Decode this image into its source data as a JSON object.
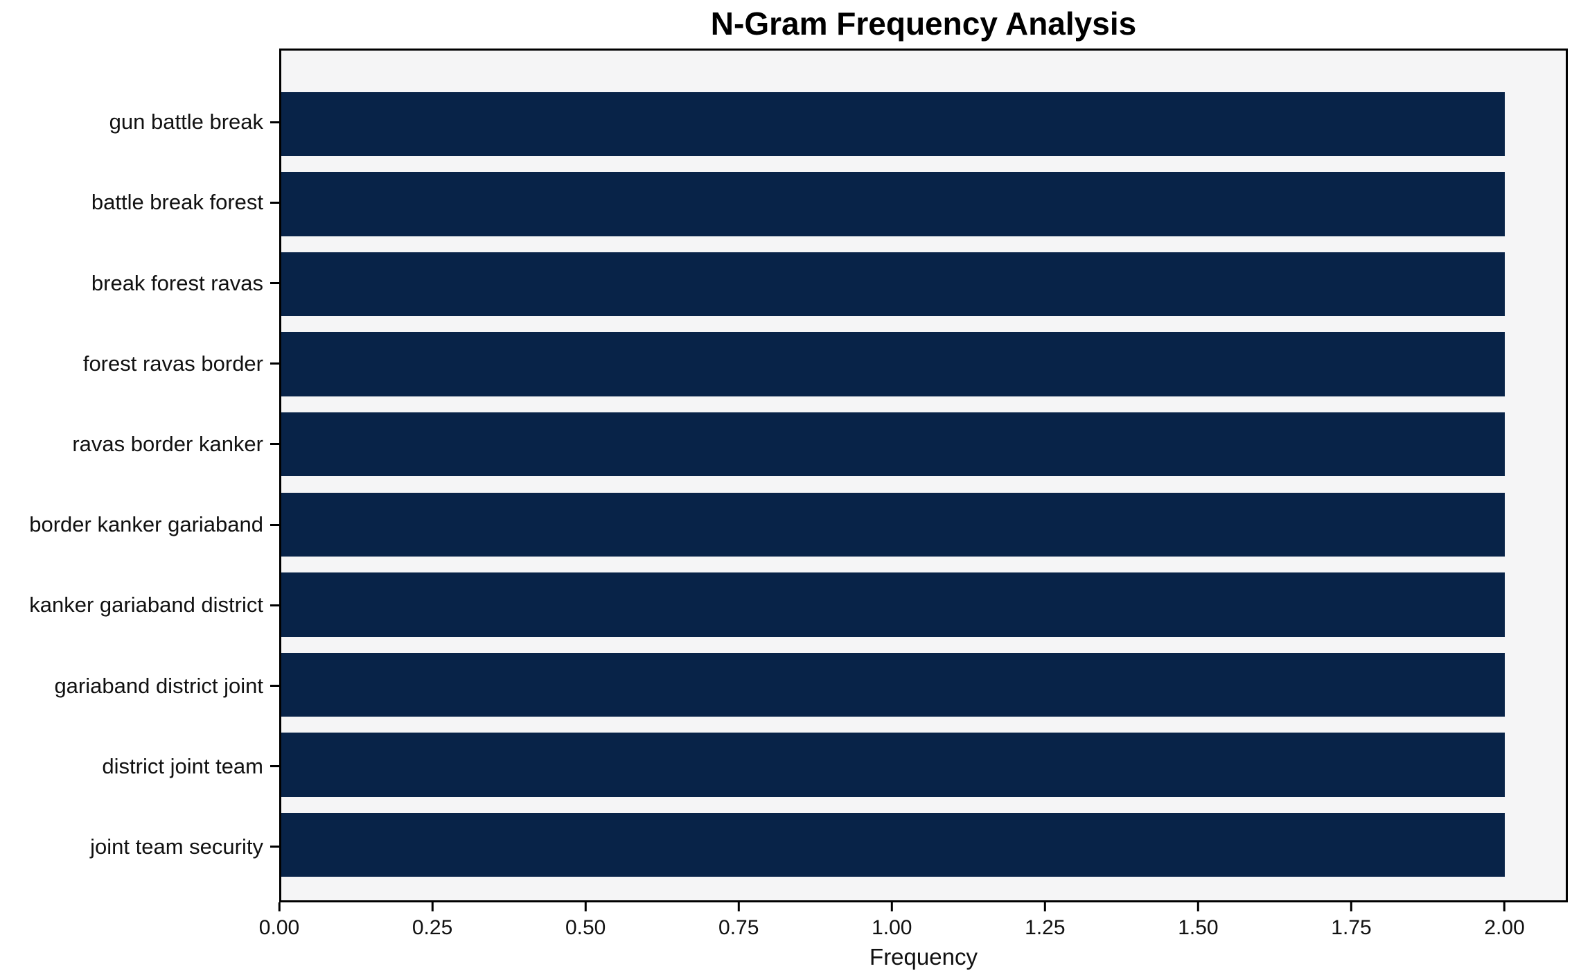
{
  "chart_data": {
    "type": "bar",
    "orientation": "horizontal",
    "title": "N-Gram Frequency Analysis",
    "xlabel": "Frequency",
    "ylabel": "",
    "categories": [
      "gun battle break",
      "battle break forest",
      "break forest ravas",
      "forest ravas border",
      "ravas border kanker",
      "border kanker gariaband",
      "kanker gariaband district",
      "gariaband district joint",
      "district joint team",
      "joint team security"
    ],
    "values": [
      2,
      2,
      2,
      2,
      2,
      2,
      2,
      2,
      2,
      2
    ],
    "xlim": [
      0,
      2.1
    ],
    "xticks": [
      "0.00",
      "0.25",
      "0.50",
      "0.75",
      "1.00",
      "1.25",
      "1.50",
      "1.75",
      "2.00"
    ],
    "grid": false,
    "legend": "none",
    "colors": {
      "bar": "#082348",
      "plot_bg": "#f5f5f6",
      "figure_bg": "#ffffff",
      "spine": "#000000",
      "text": "#111111"
    }
  }
}
